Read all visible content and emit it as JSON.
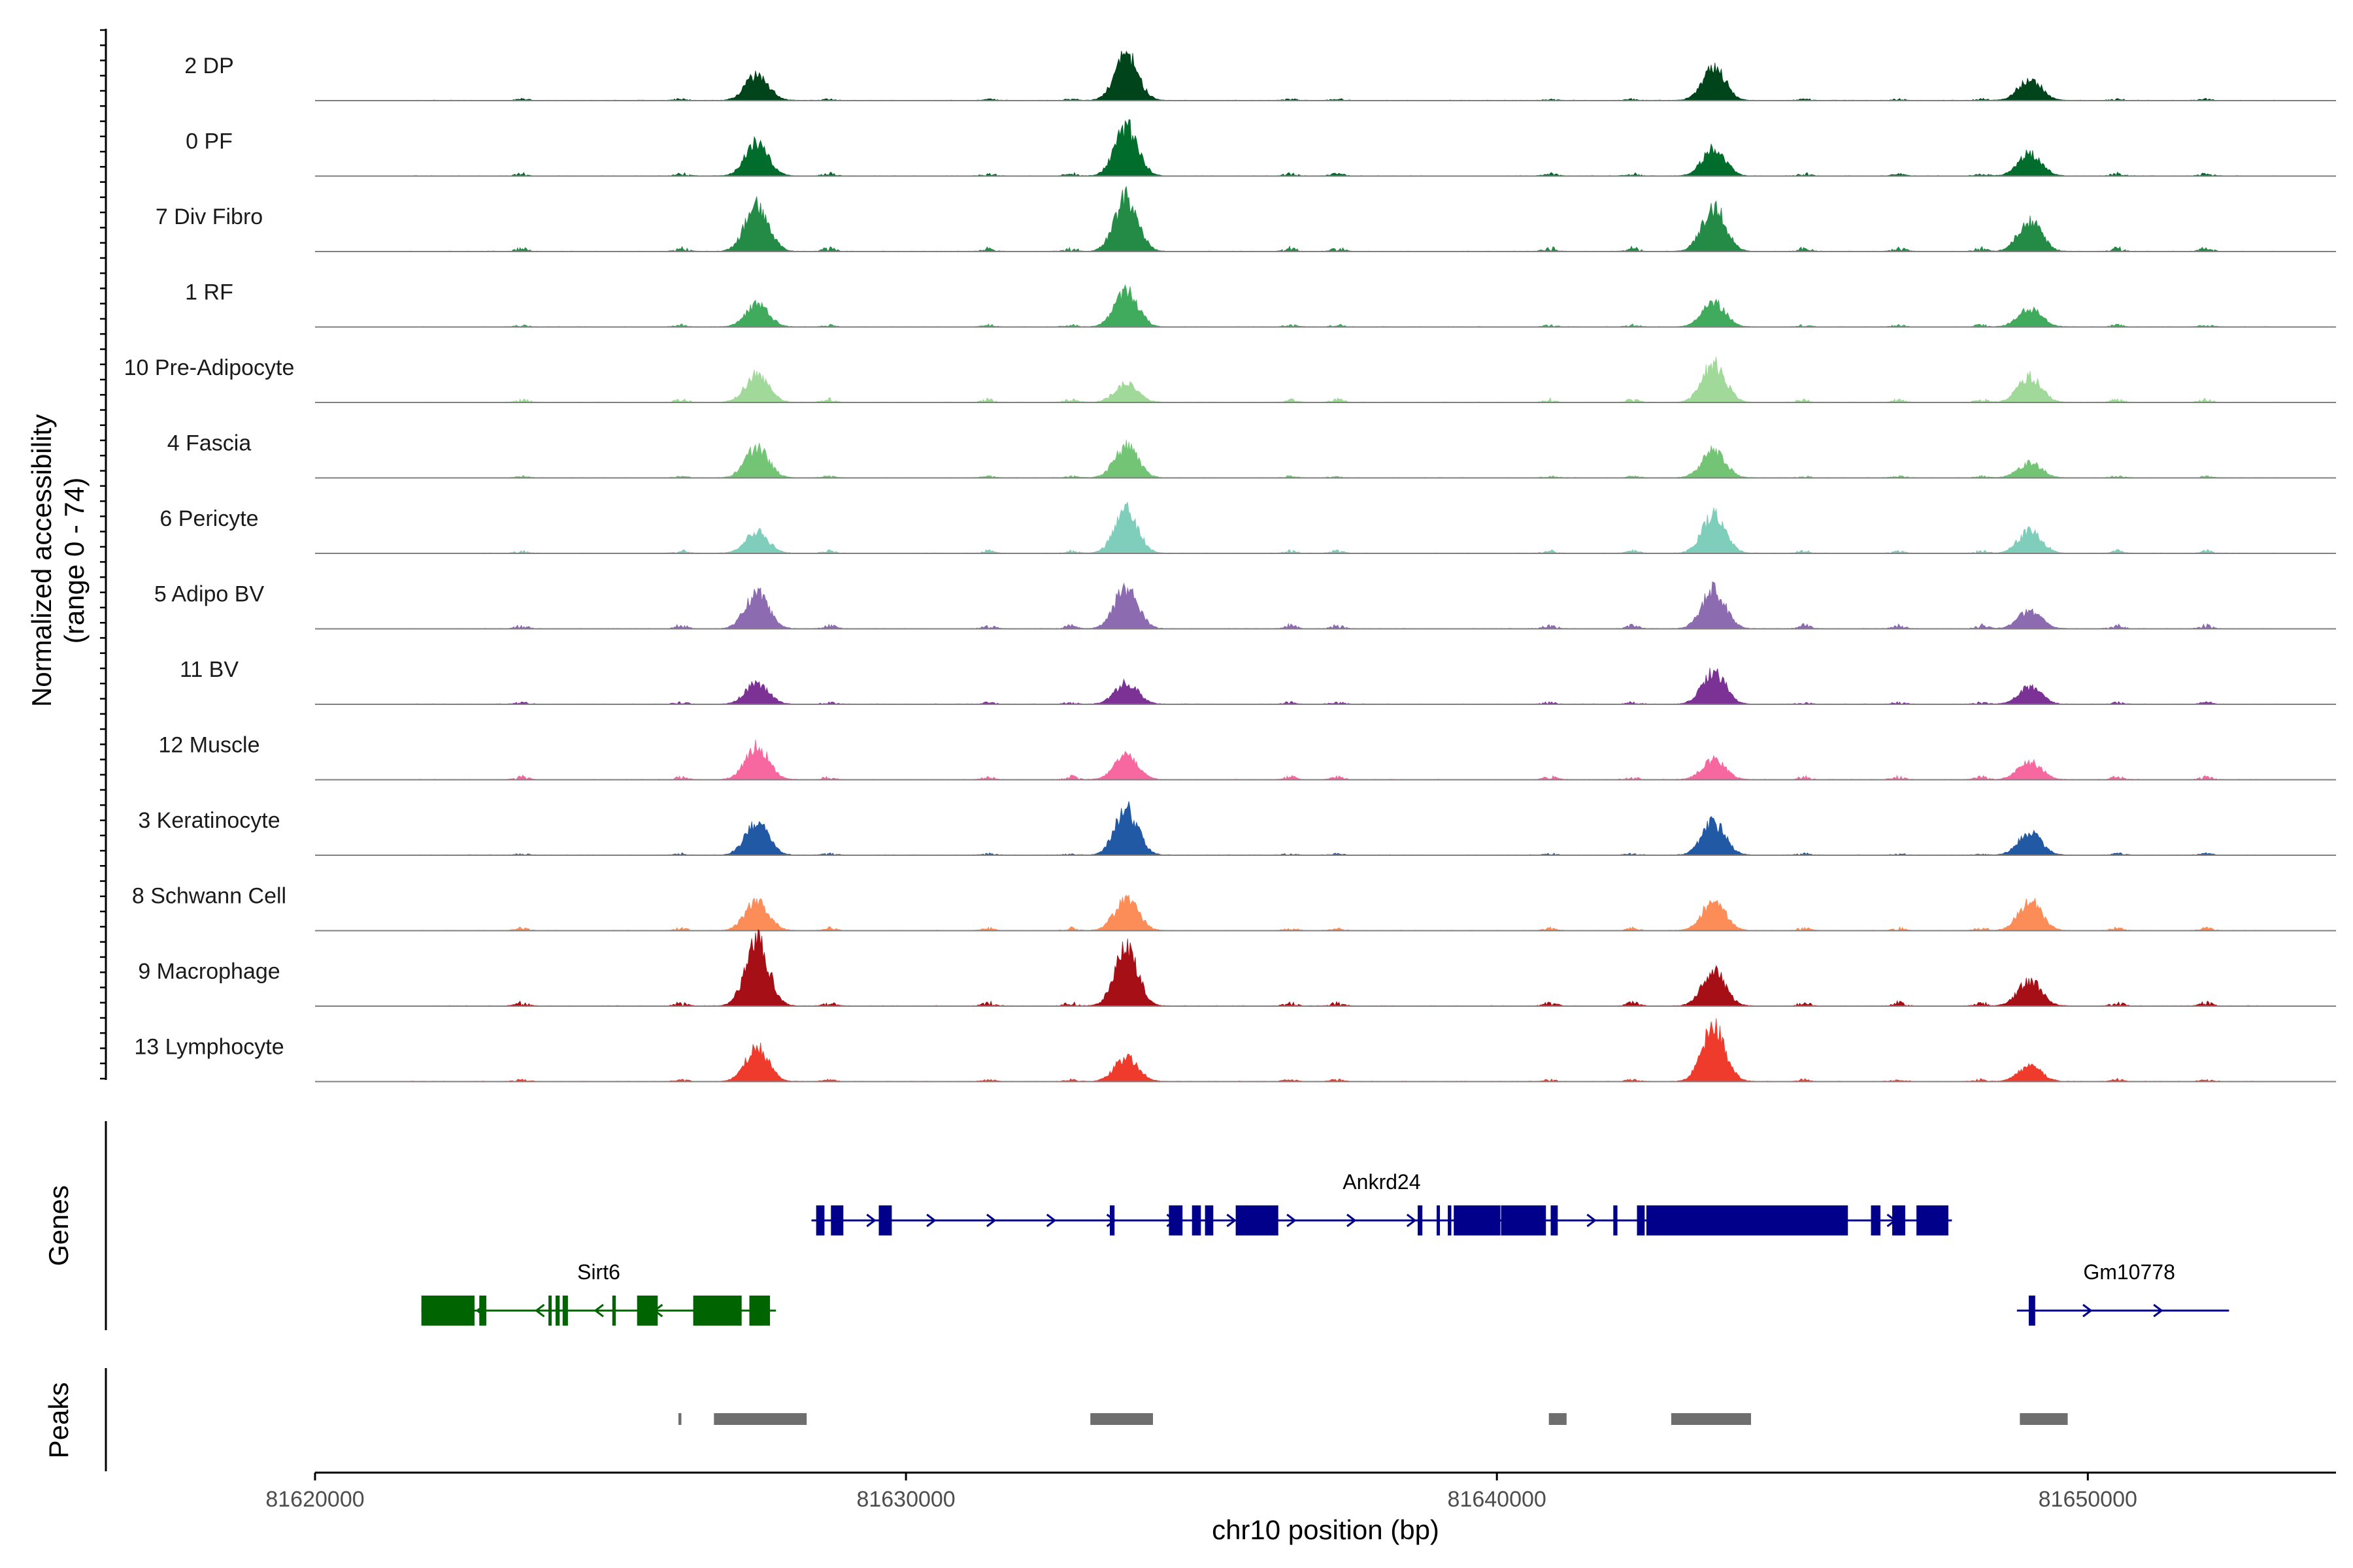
{
  "chart_data": {
    "type": "area",
    "title": "",
    "xlabel": "chr10 position (bp)",
    "ylabel_line1": "Normalized accessibility",
    "ylabel_line2": "(range 0 - 74)",
    "y_range": [
      0,
      74
    ],
    "xlim": [
      81620000,
      81654200
    ],
    "x_ticks": [
      81620000,
      81630000,
      81640000,
      81650000
    ],
    "x_tick_labels": [
      "81620000",
      "81630000",
      "81640000",
      "81650000"
    ],
    "tracks": [
      {
        "name": "2 DP",
        "color": "#00441b",
        "peaks": [
          [
            81627480,
            17
          ],
          [
            81633730,
            30
          ],
          [
            81643670,
            22
          ],
          [
            81649020,
            14
          ]
        ]
      },
      {
        "name": "0 PF",
        "color": "#006d2c",
        "peaks": [
          [
            81627480,
            22
          ],
          [
            81633730,
            32
          ],
          [
            81643670,
            18
          ],
          [
            81649020,
            15
          ]
        ]
      },
      {
        "name": "7 Div Fibro",
        "color": "#238b45",
        "peaks": [
          [
            81627480,
            32
          ],
          [
            81633730,
            36
          ],
          [
            81643670,
            30
          ],
          [
            81649020,
            20
          ]
        ]
      },
      {
        "name": "1 RF",
        "color": "#41ab5d",
        "peaks": [
          [
            81627480,
            15
          ],
          [
            81633730,
            24
          ],
          [
            81643670,
            16
          ],
          [
            81649020,
            12
          ]
        ]
      },
      {
        "name": "10 Pre-Adipocyte",
        "color": "#a1d99b",
        "peaks": [
          [
            81627480,
            19
          ],
          [
            81633730,
            12
          ],
          [
            81643670,
            26
          ],
          [
            81649020,
            17
          ]
        ]
      },
      {
        "name": "4 Fascia",
        "color": "#74c476",
        "peaks": [
          [
            81627480,
            20
          ],
          [
            81633730,
            21
          ],
          [
            81643670,
            18
          ],
          [
            81649020,
            10
          ]
        ]
      },
      {
        "name": "6 Pericyte",
        "color": "#7fcdbb",
        "peaks": [
          [
            81627480,
            14
          ],
          [
            81633730,
            28
          ],
          [
            81643670,
            26
          ],
          [
            81649020,
            15
          ]
        ]
      },
      {
        "name": "5 Adipo BV",
        "color": "#8c6bb1",
        "peaks": [
          [
            81627480,
            24
          ],
          [
            81633730,
            28
          ],
          [
            81643670,
            26
          ],
          [
            81649020,
            12
          ]
        ]
      },
      {
        "name": "11 BV",
        "color": "#7b3294",
        "peaks": [
          [
            81627480,
            14
          ],
          [
            81633730,
            14
          ],
          [
            81643670,
            22
          ],
          [
            81649020,
            11
          ]
        ]
      },
      {
        "name": "12 Muscle",
        "color": "#f768a1",
        "peaks": [
          [
            81627480,
            22
          ],
          [
            81633730,
            17
          ],
          [
            81643670,
            13
          ],
          [
            81649020,
            12
          ]
        ]
      },
      {
        "name": "3 Keratinocyte",
        "color": "#2159a5",
        "peaks": [
          [
            81627480,
            21
          ],
          [
            81633730,
            30
          ],
          [
            81643670,
            22
          ],
          [
            81649020,
            15
          ]
        ]
      },
      {
        "name": "8 Schwann Cell",
        "color": "#fc8d59",
        "peaks": [
          [
            81627480,
            20
          ],
          [
            81633730,
            22
          ],
          [
            81643670,
            20
          ],
          [
            81649020,
            20
          ]
        ]
      },
      {
        "name": "9 Macrophage",
        "color": "#a50f15",
        "peaks": [
          [
            81627480,
            44
          ],
          [
            81633730,
            38
          ],
          [
            81643670,
            23
          ],
          [
            81649020,
            17
          ]
        ]
      },
      {
        "name": "13 Lymphocyte",
        "color": "#ef3b2c",
        "peaks": [
          [
            81627480,
            22
          ],
          [
            81633730,
            16
          ],
          [
            81643670,
            36
          ],
          [
            81649020,
            10
          ]
        ]
      }
    ],
    "genes": [
      {
        "name": "Ankrd24",
        "strand": "+",
        "color": "#00008b",
        "start": 81628400,
        "end": 81647700,
        "exons": [
          [
            81628480,
            81628620
          ],
          [
            81628730,
            81628940
          ],
          [
            81629540,
            81629760
          ],
          [
            81633450,
            81633530
          ],
          [
            81634450,
            81634680
          ],
          [
            81634840,
            81634990
          ],
          [
            81635060,
            81635200
          ],
          [
            81635580,
            81636300
          ],
          [
            81638660,
            81638740
          ],
          [
            81638980,
            81639000
          ],
          [
            81639170,
            81639230
          ],
          [
            81639270,
            81639480
          ],
          [
            81639450,
            81640060
          ],
          [
            81640070,
            81640830
          ],
          [
            81640910,
            81641030
          ],
          [
            81641970,
            81642040
          ],
          [
            81642370,
            81642500
          ],
          [
            81642530,
            81645940
          ],
          [
            81646330,
            81646490
          ],
          [
            81646690,
            81646910
          ],
          [
            81647100,
            81647640
          ]
        ]
      },
      {
        "name": "Sirt6",
        "strand": "-",
        "color": "#006400",
        "start": 81621800,
        "end": 81627800,
        "exons": [
          [
            81621800,
            81622700
          ],
          [
            81622780,
            81622900
          ],
          [
            81623950,
            81624000
          ],
          [
            81624070,
            81624140
          ],
          [
            81624190,
            81624280
          ],
          [
            81625030,
            81625090
          ],
          [
            81625450,
            81625800
          ],
          [
            81626400,
            81627220
          ],
          [
            81627350,
            81627700
          ]
        ]
      },
      {
        "name": "Gm10778",
        "strand": "+",
        "color": "#00008b",
        "start": 81648800,
        "end": 81652390,
        "exons": [
          [
            81649000,
            81649110
          ]
        ]
      }
    ],
    "peaks_track": [
      [
        81626150,
        81626200
      ],
      [
        81626750,
        81628320
      ],
      [
        81633120,
        81634180
      ],
      [
        81640880,
        81641180
      ],
      [
        81642950,
        81644300
      ],
      [
        81648850,
        81649660
      ]
    ],
    "panel_labels": {
      "genes": "Genes",
      "peaks": "Peaks"
    }
  }
}
